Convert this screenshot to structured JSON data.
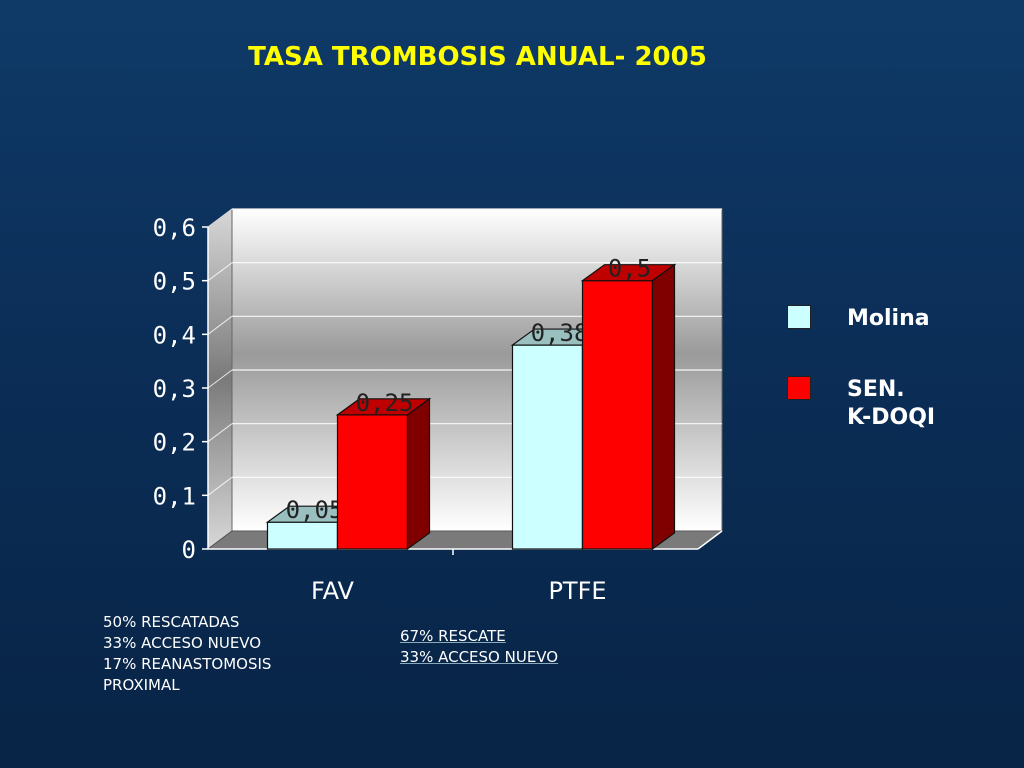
{
  "chart_data": {
    "type": "bar",
    "title": "TASA TROMBOSIS ANUAL- 2005",
    "categories": [
      "FAV",
      "PTFE"
    ],
    "series": [
      {
        "name": "Molina",
        "values": [
          0.05,
          0.38
        ],
        "labels": [
          "0,05",
          "0,38"
        ],
        "color": "#ccffff"
      },
      {
        "name": "SEN.\nK-DOQI",
        "values": [
          0.25,
          0.5
        ],
        "labels": [
          "0,25",
          "0,5"
        ],
        "color": "#ff0000"
      }
    ],
    "ylim": [
      0,
      0.6
    ],
    "yticks": [
      0,
      0.1,
      0.2,
      0.3,
      0.4,
      0.5,
      0.6
    ],
    "ytick_labels": [
      "0",
      "0,1",
      "0,2",
      "0,3",
      "0,4",
      "0,5",
      "0,6"
    ],
    "grid": true,
    "legend": "right",
    "style": "3d"
  },
  "notes": {
    "fav": "50% RESCATADAS\n33% ACCESO NUEVO\n17% REANASTOMOSIS\n        PROXIMAL",
    "ptfe": "67% RESCATE\n33% ACCESO NUEVO"
  }
}
